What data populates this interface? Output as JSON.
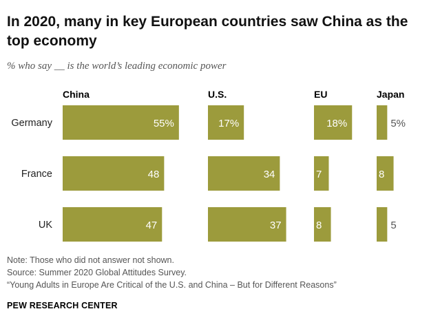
{
  "title": "In 2020, many in key European countries saw China as the top economy",
  "subtitle": "% who say __ is the world’s leading economic power",
  "chart_data": {
    "type": "bar",
    "orientation": "horizontal-small-multiples",
    "categories": [
      "Germany",
      "France",
      "UK"
    ],
    "series": [
      {
        "name": "China",
        "values": [
          55,
          48,
          47
        ],
        "labels": [
          "55%",
          "48",
          "47"
        ]
      },
      {
        "name": "U.S.",
        "values": [
          17,
          34,
          37
        ],
        "labels": [
          "17%",
          "34",
          "37"
        ]
      },
      {
        "name": "EU",
        "values": [
          18,
          7,
          8
        ],
        "labels": [
          "18%",
          "7",
          "8"
        ]
      },
      {
        "name": "Japan",
        "values": [
          5,
          8,
          5
        ],
        "labels": [
          "5%",
          "8",
          "5"
        ]
      }
    ],
    "bar_color": "#9c9b3c",
    "label_color_inside": "#ffffff",
    "label_color_outside": "#555555"
  },
  "notes": {
    "note": "Note: Those who did not answer not shown.",
    "source": "Source: Summer 2020 Global Attitudes Survey.",
    "report": "“Young Adults in Europe Are Critical of the U.S. and China – But for Different Reasons”"
  },
  "brand": "PEW RESEARCH CENTER"
}
